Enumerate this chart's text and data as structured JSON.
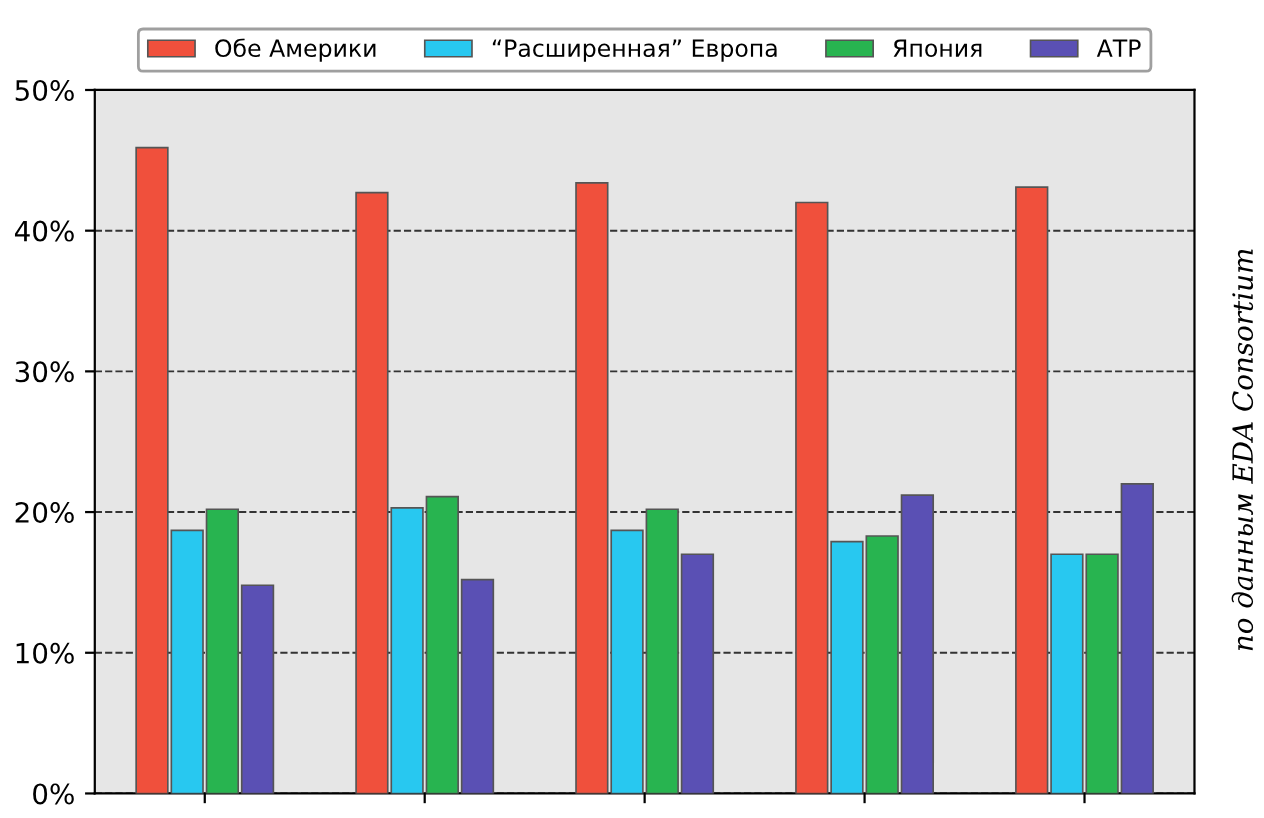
{
  "chart_data": {
    "type": "bar",
    "categories": [
      null,
      null,
      null,
      null,
      null
    ],
    "series": [
      {
        "name": "Обе Америки",
        "color": "#f0503c",
        "values": [
          45.9,
          42.7,
          43.4,
          42.0,
          43.1
        ]
      },
      {
        "name": "“Расширенная” Европа",
        "color": "#28c8f0",
        "values": [
          18.7,
          20.3,
          18.7,
          17.9,
          17.0
        ]
      },
      {
        "name": "Япония",
        "color": "#28b450",
        "values": [
          20.2,
          21.1,
          20.2,
          18.3,
          17.0
        ]
      },
      {
        "name": "АТР",
        "color": "#5a50b4",
        "values": [
          14.8,
          15.2,
          17.0,
          21.2,
          22.0
        ]
      }
    ],
    "ylim": [
      0,
      50
    ],
    "yticks": [
      {
        "value": 0,
        "label": "0%"
      },
      {
        "value": 10,
        "label": "10%"
      },
      {
        "value": 20,
        "label": "20%"
      },
      {
        "value": 30,
        "label": "30%"
      },
      {
        "value": 40,
        "label": "40%"
      },
      {
        "value": 50,
        "label": "50%"
      }
    ],
    "grid": "y",
    "legend": "top",
    "annotations": [
      "по данным EDA Consortium"
    ]
  }
}
